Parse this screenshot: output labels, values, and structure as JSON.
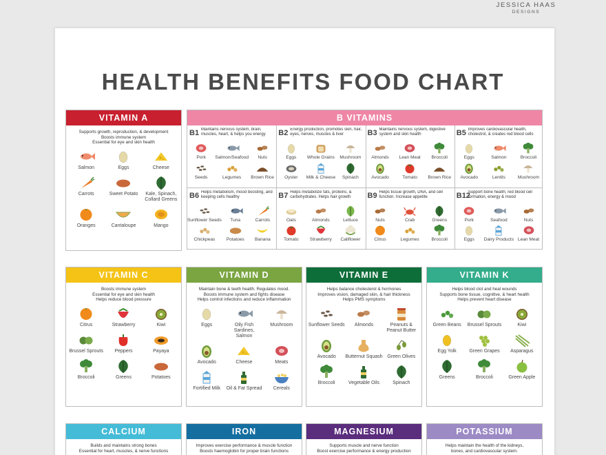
{
  "brand": {
    "line1": "JESSICA HAAS",
    "line2": "DESIGNS"
  },
  "title": "HEALTH BENEFITS FOOD CHART",
  "colors": {
    "vitamin_a": "#c8202f",
    "b_vitamins": "#ef86a6",
    "vitamin_c": "#f4c316",
    "vitamin_d": "#7aa541",
    "vitamin_e": "#0e6e3a",
    "vitamin_k": "#33ad8b",
    "calcium": "#45bcd7",
    "iron": "#156ea0",
    "magnesium": "#5b2d7d",
    "potassium": "#9c8ac5"
  },
  "vitamin_a": {
    "title": "VITAMIN A",
    "desc": [
      "Supports growth, reproduction, & development",
      "Boosts immune system",
      "Essential for eye and skin health"
    ],
    "foods": [
      {
        "label": "Salmon",
        "icon": "fish-icon",
        "color": "#ef8c6c"
      },
      {
        "label": "Eggs",
        "icon": "egg-icon",
        "color": "#e6d9a8"
      },
      {
        "label": "Cheese",
        "icon": "cheese-icon",
        "color": "#f2c82a"
      },
      {
        "label": "Carrots",
        "icon": "carrot-icon",
        "color": "#ee7a22"
      },
      {
        "label": "Sweet Potato",
        "icon": "potato-icon",
        "color": "#c9683a"
      },
      {
        "label": "Kale, Spinach, Collard Greens",
        "icon": "leaf-icon",
        "color": "#2f6b32"
      },
      {
        "label": "Oranges",
        "icon": "orange-icon",
        "color": "#f08a1a"
      },
      {
        "label": "Cantaloupe",
        "icon": "melon-icon",
        "color": "#f2a94a"
      },
      {
        "label": "Mango",
        "icon": "mango-icon",
        "color": "#f3b21f"
      }
    ]
  },
  "b_vitamins": {
    "title": "B VITAMINS",
    "subs": [
      {
        "code": "B1",
        "desc": "Maintains nervous system, brain, muscles, heart, & helps you energy",
        "foods": [
          {
            "label": "Pork",
            "icon": "meat-icon",
            "color": "#e05a5a"
          },
          {
            "label": "Salmon/Seafood",
            "icon": "fish-icon",
            "color": "#8a9aa8"
          },
          {
            "label": "Nuts",
            "icon": "nut-icon",
            "color": "#a86a34"
          },
          {
            "label": "Seeds",
            "icon": "seed-icon",
            "color": "#6b5a48"
          },
          {
            "label": "Legumes",
            "icon": "bean-icon",
            "color": "#d9a13a"
          },
          {
            "label": "Brown Rice",
            "icon": "rice-icon",
            "color": "#7a4e2a"
          }
        ]
      },
      {
        "code": "B2",
        "desc": "Energy production, promotes skin, hair, eyes, nerves, muscles & liver",
        "foods": [
          {
            "label": "Eggs",
            "icon": "egg-icon",
            "color": "#e6d9a8"
          },
          {
            "label": "Whole Grains",
            "icon": "bread-icon",
            "color": "#d0a060"
          },
          {
            "label": "Mushroom",
            "icon": "mushroom-icon",
            "color": "#c9b59a"
          },
          {
            "label": "Oyster",
            "icon": "oyster-icon",
            "color": "#6b6b6b"
          },
          {
            "label": "Milk & Cheese",
            "icon": "milk-icon",
            "color": "#5aa5d9"
          },
          {
            "label": "Spinach",
            "icon": "leaf-icon",
            "color": "#2f6b32"
          }
        ]
      },
      {
        "code": "B3",
        "desc": "Maintains nervous system, digestive system and skin health",
        "foods": [
          {
            "label": "Almonds",
            "icon": "nut-icon",
            "color": "#b97a48"
          },
          {
            "label": "Lean Meat",
            "icon": "meat-icon",
            "color": "#d4505a"
          },
          {
            "label": "Broccoli",
            "icon": "broccoli-icon",
            "color": "#3f8a3a"
          },
          {
            "label": "Avocado",
            "icon": "avocado-icon",
            "color": "#6f9a3a"
          },
          {
            "label": "Tomato",
            "icon": "tomato-icon",
            "color": "#e03a2a"
          },
          {
            "label": "Brown Rice",
            "icon": "rice-icon",
            "color": "#7a4e2a"
          }
        ]
      },
      {
        "code": "B5",
        "desc": "Improves cardiovascular health, cholestrol, & creates red blood cells",
        "foods": [
          {
            "label": "Eggs",
            "icon": "egg-icon",
            "color": "#e6d9a8"
          },
          {
            "label": "Salmon",
            "icon": "fish-icon",
            "color": "#ef8c6c"
          },
          {
            "label": "Broccoli",
            "icon": "broccoli-icon",
            "color": "#3f8a3a"
          },
          {
            "label": "Avocado",
            "icon": "avocado-icon",
            "color": "#6f9a3a"
          },
          {
            "label": "Lentils",
            "icon": "bean-icon",
            "color": "#8aa030"
          },
          {
            "label": "Mushroom",
            "icon": "mushroom-icon",
            "color": "#c9b59a"
          }
        ]
      },
      {
        "code": "B6",
        "desc": "Helps metabolism, mood boosting, and keeping cells healthy",
        "foods": [
          {
            "label": "Sunflower Seeds",
            "icon": "seed-icon",
            "color": "#6b5a48"
          },
          {
            "label": "Tuna",
            "icon": "fish-icon",
            "color": "#6a7f95"
          },
          {
            "label": "Carrots",
            "icon": "carrot-icon",
            "color": "#ee7a22"
          },
          {
            "label": "Chickpeas",
            "icon": "bean-icon",
            "color": "#d9b070"
          },
          {
            "label": "Potatoes",
            "icon": "potato-icon",
            "color": "#c98a4a"
          },
          {
            "label": "Banana",
            "icon": "banana-icon",
            "color": "#f2d030"
          }
        ]
      },
      {
        "code": "B7",
        "desc": "Helps metabolize fats, proteins, & carbohydrates. Helps hair growth",
        "foods": [
          {
            "label": "Oats",
            "icon": "oats-icon",
            "color": "#e2cfa0"
          },
          {
            "label": "Almonds",
            "icon": "nut-icon",
            "color": "#b97a48"
          },
          {
            "label": "Lettuce",
            "icon": "leaf-icon",
            "color": "#7ab848"
          },
          {
            "label": "Tomato",
            "icon": "tomato-icon",
            "color": "#e03a2a"
          },
          {
            "label": "Strawberry",
            "icon": "strawberry-icon",
            "color": "#e0343a"
          },
          {
            "label": "Califlower",
            "icon": "cauliflower-icon",
            "color": "#ece6d2"
          }
        ]
      },
      {
        "code": "B9",
        "desc": "Helps tissue growth, DNA, and cell function. Increase appetite",
        "foods": [
          {
            "label": "Nuts",
            "icon": "nut-icon",
            "color": "#a86a34"
          },
          {
            "label": "Crab",
            "icon": "crab-icon",
            "color": "#e0503a"
          },
          {
            "label": "Greens",
            "icon": "leaf-icon",
            "color": "#2f6b32"
          },
          {
            "label": "Citrus",
            "icon": "orange-icon",
            "color": "#f08a1a"
          },
          {
            "label": "Legumes",
            "icon": "bean-icon",
            "color": "#d9a13a"
          },
          {
            "label": "Broccoli",
            "icon": "broccoli-icon",
            "color": "#3f8a3a"
          }
        ]
      },
      {
        "code": "B12",
        "desc": "Support bone health, red blood cell formation, energy & mood",
        "foods": [
          {
            "label": "Pork",
            "icon": "meat-icon",
            "color": "#e05a5a"
          },
          {
            "label": "Seafood",
            "icon": "fish-icon",
            "color": "#8a9aa8"
          },
          {
            "label": "Nuts",
            "icon": "nut-icon",
            "color": "#a86a34"
          },
          {
            "label": "Eggs",
            "icon": "egg-icon",
            "color": "#e6d9a8"
          },
          {
            "label": "Dairy Products",
            "icon": "milk-icon",
            "color": "#5aa5d9"
          },
          {
            "label": "Lean Meat",
            "icon": "meat-icon",
            "color": "#d4505a"
          }
        ]
      }
    ]
  },
  "vitamin_c": {
    "title": "VITAMIN C",
    "desc": [
      "Boosts immune system",
      "Essential for eye and skin health",
      "Helps reduce blood pressure"
    ],
    "foods": [
      {
        "label": "Citrus",
        "icon": "orange-icon",
        "color": "#f08a1a"
      },
      {
        "label": "Strawberry",
        "icon": "strawberry-icon",
        "color": "#e0343a"
      },
      {
        "label": "Kiwi",
        "icon": "kiwi-icon",
        "color": "#8aaa3a"
      },
      {
        "label": "Brussel Sprouts",
        "icon": "sprout-icon",
        "color": "#5a8a3a"
      },
      {
        "label": "Peppers",
        "icon": "pepper-icon",
        "color": "#e0302a"
      },
      {
        "label": "Payaya",
        "icon": "papaya-icon",
        "color": "#f09a2a"
      },
      {
        "label": "Broccoli",
        "icon": "broccoli-icon",
        "color": "#3f8a3a"
      },
      {
        "label": "Greens",
        "icon": "leaf-icon",
        "color": "#2f6b32"
      },
      {
        "label": "Potatoes",
        "icon": "potato-icon",
        "color": "#c9683a"
      }
    ]
  },
  "vitamin_d": {
    "title": "VITAMIN D",
    "desc": [
      "Maintain bone & teeth health. Regulates mood.",
      "Boosts immune system and fights disease",
      "Helps control infections and reduce inflammation"
    ],
    "foods": [
      {
        "label": "Eggs",
        "icon": "egg-icon",
        "color": "#e6d9a8"
      },
      {
        "label": "Oily Fish Sardines, Salmon",
        "icon": "fish-icon",
        "color": "#8a9aa8"
      },
      {
        "label": "Mushroom",
        "icon": "mushroom-icon",
        "color": "#c9b59a"
      },
      {
        "label": "Avocado",
        "icon": "avocado-icon",
        "color": "#6f9a3a"
      },
      {
        "label": "Cheese",
        "icon": "cheese-icon",
        "color": "#f2c82a"
      },
      {
        "label": "Meats",
        "icon": "meat-icon",
        "color": "#d4505a"
      },
      {
        "label": "Fortified Milk",
        "icon": "milk-icon",
        "color": "#5aa5d9"
      },
      {
        "label": "Oil & Fat Spread",
        "icon": "bottle-icon",
        "color": "#2f6b32"
      },
      {
        "label": "Cereals",
        "icon": "cereal-icon",
        "color": "#4a80c0"
      }
    ]
  },
  "vitamin_e": {
    "title": "VITAMIN E",
    "desc": [
      "Helps balance cholesterol & hormones",
      "Improves vision, damaged skin, & hair thickness",
      "Helps PMS symptoms"
    ],
    "foods": [
      {
        "label": "Sunflower Seeds",
        "icon": "seed-icon",
        "color": "#6b5a48"
      },
      {
        "label": "Almonds",
        "icon": "nut-icon",
        "color": "#b97a48"
      },
      {
        "label": "Peanuts & Peanut Butter",
        "icon": "jar-icon",
        "color": "#d98a3a"
      },
      {
        "label": "Avocado",
        "icon": "avocado-icon",
        "color": "#6f9a3a"
      },
      {
        "label": "Butternut Squash",
        "icon": "squash-icon",
        "color": "#e6b060"
      },
      {
        "label": "Green Olives",
        "icon": "olive-icon",
        "color": "#7a9a3a"
      },
      {
        "label": "Broccoli",
        "icon": "broccoli-icon",
        "color": "#3f8a3a"
      },
      {
        "label": "Vegetable Oils",
        "icon": "bottle-icon",
        "color": "#2f6b32"
      },
      {
        "label": "Spinach",
        "icon": "leaf-icon",
        "color": "#2f6b32"
      }
    ]
  },
  "vitamin_k": {
    "title": "VITAMIN K",
    "desc": [
      "Helps blood clot and heal wounds",
      "Supports bone tissue, cognitive, & heart health",
      "Helps prevent heart disease"
    ],
    "foods": [
      {
        "label": "Green Beans",
        "icon": "bean-icon",
        "color": "#4a9a3a"
      },
      {
        "label": "Brussel Sprouts",
        "icon": "sprout-icon",
        "color": "#5a8a3a"
      },
      {
        "label": "Kiwi",
        "icon": "kiwi-icon",
        "color": "#8aaa3a"
      },
      {
        "label": "Egg Yolk",
        "icon": "egg-icon",
        "color": "#f0c020"
      },
      {
        "label": "Green Grapes",
        "icon": "grape-icon",
        "color": "#a0c040"
      },
      {
        "label": "Asparagus",
        "icon": "asparagus-icon",
        "color": "#8ab050"
      },
      {
        "label": "Greens",
        "icon": "leaf-icon",
        "color": "#2f6b32"
      },
      {
        "label": "Broccoli",
        "icon": "broccoli-icon",
        "color": "#3f8a3a"
      },
      {
        "label": "Green Apple",
        "icon": "apple-icon",
        "color": "#8ac040"
      }
    ]
  },
  "calcium": {
    "title": "CALCIUM",
    "desc": [
      "Builds and maintains strong bones",
      "Essential for heart, muscles, & nerve functions"
    ]
  },
  "iron": {
    "title": "IRON",
    "desc": [
      "Improves exercise performance & muscle function",
      "Boosts haemoglobin for proper brain functions"
    ]
  },
  "magnesium": {
    "title": "MAGNESIUM",
    "desc": [
      "Supports muscle and nerve function",
      "Boost exercise performance & energy production"
    ]
  },
  "potassium": {
    "title": "POTASSIUM",
    "desc": [
      "Helps maintain the health of the kidneys,",
      "bones, and cardiovascular system."
    ]
  }
}
